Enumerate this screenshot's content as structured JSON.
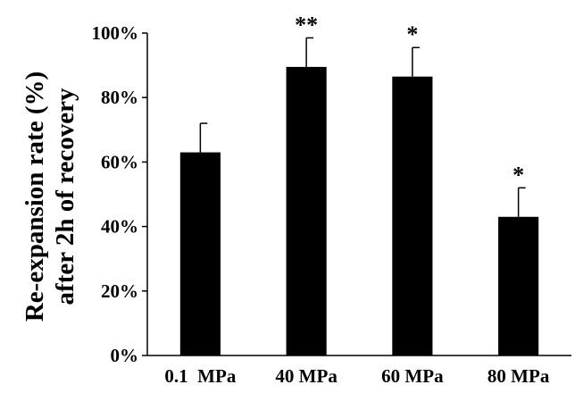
{
  "chart_data": {
    "type": "bar",
    "categories": [
      "0.1  MPa",
      "40 MPa",
      "60 MPa",
      "80 MPa"
    ],
    "values": [
      63,
      89.5,
      86.5,
      43
    ],
    "errors": [
      9,
      9,
      9,
      9
    ],
    "significance": [
      "",
      "**",
      "*",
      "*"
    ],
    "ylabel_lines": [
      "Re-expansion rate (%)",
      "after 2h of recovery"
    ],
    "yticks": [
      "0%",
      "20%",
      "40%",
      "60%",
      "80%",
      "100%"
    ],
    "ylim": [
      0,
      100
    ],
    "bar_color": "#000000",
    "grid": false
  }
}
